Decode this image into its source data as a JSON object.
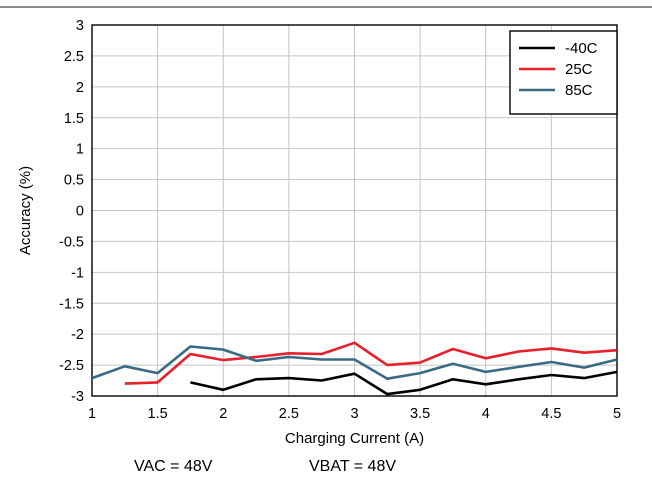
{
  "chart_data": {
    "type": "line",
    "xlabel": "Charging Current (A)",
    "ylabel": "Accuracy (%)",
    "xlim": [
      1,
      5
    ],
    "ylim": [
      -3,
      3
    ],
    "xticks": [
      1,
      1.5,
      2,
      2.5,
      3,
      3.5,
      4,
      4.5,
      5
    ],
    "yticks": [
      3,
      2.5,
      2,
      1.5,
      1,
      0.5,
      0,
      -0.5,
      -1,
      -1.5,
      -2,
      -2.5,
      -3
    ],
    "xtick_labels": [
      "1",
      "1.5",
      "2",
      "2.5",
      "3",
      "3.5",
      "4",
      "4.5",
      "5"
    ],
    "ytick_labels": [
      "3",
      "2.5",
      "2",
      "1.5",
      "1",
      "0.5",
      "0",
      "-0.5",
      "-1",
      "-1.5",
      "-2",
      "-2.5",
      "-3"
    ],
    "grid": true,
    "legend_position": "top-right",
    "series": [
      {
        "name": "-40C",
        "color": "#000000",
        "x": [
          1.75,
          2.0,
          2.25,
          2.5,
          2.75,
          3.0,
          3.25,
          3.5,
          3.75,
          4.0,
          4.25,
          4.5,
          4.75,
          5.0
        ],
        "values": [
          -2.78,
          -2.9,
          -2.73,
          -2.71,
          -2.75,
          -2.64,
          -2.97,
          -2.9,
          -2.73,
          -2.81,
          -2.73,
          -2.66,
          -2.71,
          -2.61
        ]
      },
      {
        "name": "25C",
        "color": "#e8202a",
        "x": [
          1.25,
          1.5,
          1.75,
          2.0,
          2.25,
          2.5,
          2.75,
          3.0,
          3.25,
          3.5,
          3.75,
          4.0,
          4.25,
          4.5,
          4.75,
          5.0
        ],
        "values": [
          -2.8,
          -2.78,
          -2.32,
          -2.42,
          -2.37,
          -2.31,
          -2.32,
          -2.14,
          -2.5,
          -2.46,
          -2.24,
          -2.39,
          -2.28,
          -2.23,
          -2.3,
          -2.26
        ]
      },
      {
        "name": "85C",
        "color": "#3a6a84",
        "x": [
          1.0,
          1.25,
          1.5,
          1.75,
          2.0,
          2.25,
          2.5,
          2.75,
          3.0,
          3.25,
          3.5,
          3.75,
          4.0,
          4.25,
          4.5,
          4.75,
          5.0
        ],
        "values": [
          -2.71,
          -2.52,
          -2.63,
          -2.2,
          -2.25,
          -2.43,
          -2.37,
          -2.41,
          -2.41,
          -2.72,
          -2.63,
          -2.48,
          -2.61,
          -2.53,
          -2.45,
          -2.54,
          -2.41
        ]
      }
    ]
  },
  "footnote": {
    "vac": "VAC = 48V",
    "vbat": "VBAT = 48V"
  }
}
